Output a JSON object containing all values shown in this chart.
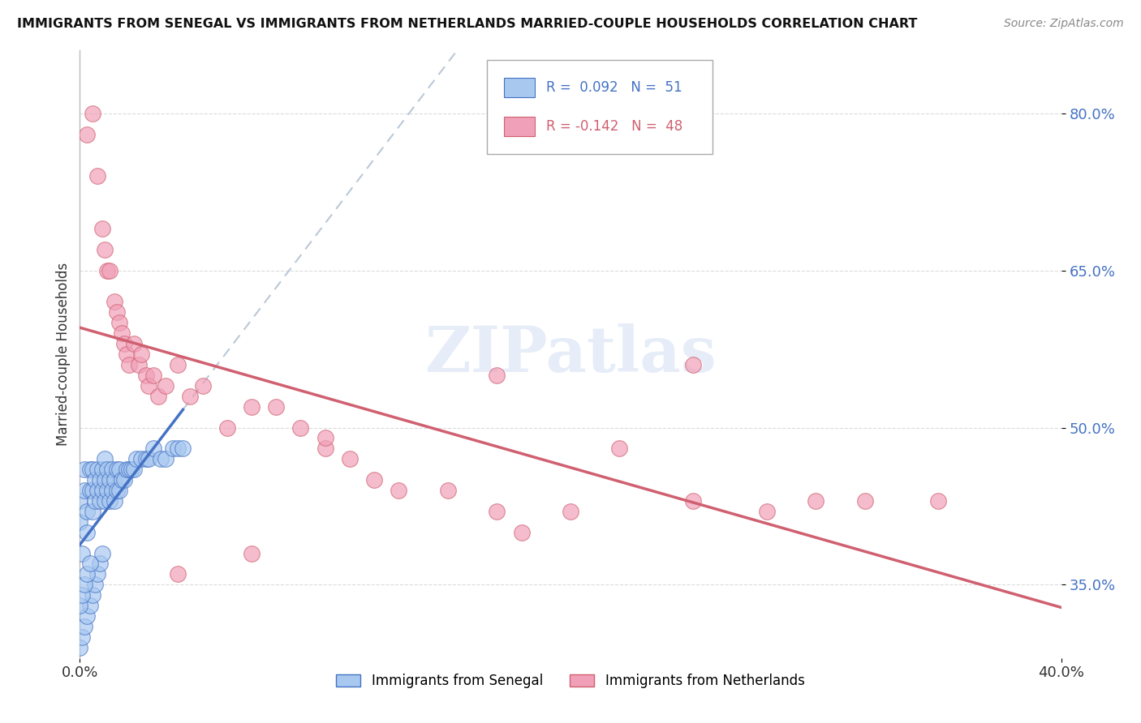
{
  "title": "IMMIGRANTS FROM SENEGAL VS IMMIGRANTS FROM NETHERLANDS MARRIED-COUPLE HOUSEHOLDS CORRELATION CHART",
  "source": "Source: ZipAtlas.com",
  "xlabel": "",
  "ylabel": "Married-couple Households",
  "xlim": [
    0.0,
    0.4
  ],
  "ylim": [
    0.28,
    0.86
  ],
  "yticks": [
    0.35,
    0.5,
    0.65,
    0.8
  ],
  "ytick_labels": [
    "35.0%",
    "50.0%",
    "65.0%",
    "80.0%"
  ],
  "xticks": [
    0.0,
    0.4
  ],
  "xtick_labels": [
    "0.0%",
    "40.0%"
  ],
  "watermark": "ZIPatlas",
  "legend": {
    "series1_label": "Immigrants from Senegal",
    "series2_label": "Immigrants from Netherlands",
    "r1": "0.092",
    "n1": "51",
    "r2": "-0.142",
    "n2": "48"
  },
  "color_blue": "#a8c8f0",
  "color_pink": "#f0a0b8",
  "line_blue": "#4472C4",
  "line_pink": "#d06070",
  "senegal_x": [
    0.0,
    0.0,
    0.001,
    0.002,
    0.002,
    0.003,
    0.003,
    0.004,
    0.004,
    0.005,
    0.005,
    0.005,
    0.006,
    0.006,
    0.007,
    0.007,
    0.008,
    0.008,
    0.009,
    0.009,
    0.01,
    0.01,
    0.01,
    0.011,
    0.011,
    0.012,
    0.012,
    0.013,
    0.013,
    0.014,
    0.014,
    0.015,
    0.015,
    0.016,
    0.016,
    0.017,
    0.018,
    0.019,
    0.02,
    0.021,
    0.022,
    0.023,
    0.025,
    0.027,
    0.028,
    0.03,
    0.033,
    0.035,
    0.038,
    0.04,
    0.042
  ],
  "senegal_y": [
    0.41,
    0.43,
    0.38,
    0.44,
    0.46,
    0.4,
    0.42,
    0.44,
    0.46,
    0.42,
    0.44,
    0.46,
    0.43,
    0.45,
    0.44,
    0.46,
    0.43,
    0.45,
    0.44,
    0.46,
    0.43,
    0.45,
    0.47,
    0.44,
    0.46,
    0.43,
    0.45,
    0.44,
    0.46,
    0.43,
    0.45,
    0.44,
    0.46,
    0.44,
    0.46,
    0.45,
    0.45,
    0.46,
    0.46,
    0.46,
    0.46,
    0.47,
    0.47,
    0.47,
    0.47,
    0.48,
    0.47,
    0.47,
    0.48,
    0.48,
    0.48
  ],
  "senegal_y_low": [
    0.28,
    0.3,
    0.33,
    0.35,
    0.36,
    0.37,
    0.38,
    0.38,
    0.39
  ],
  "netherlands_x": [
    0.003,
    0.005,
    0.007,
    0.009,
    0.01,
    0.011,
    0.012,
    0.014,
    0.015,
    0.016,
    0.017,
    0.018,
    0.019,
    0.02,
    0.022,
    0.024,
    0.025,
    0.027,
    0.028,
    0.03,
    0.032,
    0.035,
    0.04,
    0.045,
    0.05,
    0.06,
    0.07,
    0.08,
    0.09,
    0.1,
    0.11,
    0.12,
    0.13,
    0.15,
    0.17,
    0.18,
    0.2,
    0.22,
    0.25,
    0.28,
    0.3,
    0.32,
    0.35,
    0.25,
    0.17,
    0.1,
    0.07,
    0.04
  ],
  "netherlands_y": [
    0.78,
    0.8,
    0.74,
    0.69,
    0.67,
    0.65,
    0.65,
    0.62,
    0.61,
    0.6,
    0.59,
    0.58,
    0.57,
    0.56,
    0.58,
    0.56,
    0.57,
    0.55,
    0.54,
    0.55,
    0.53,
    0.54,
    0.56,
    0.53,
    0.54,
    0.5,
    0.52,
    0.52,
    0.5,
    0.48,
    0.47,
    0.45,
    0.44,
    0.44,
    0.42,
    0.4,
    0.42,
    0.48,
    0.43,
    0.42,
    0.43,
    0.43,
    0.43,
    0.56,
    0.55,
    0.49,
    0.38,
    0.36
  ],
  "background_color": "#ffffff",
  "grid_color": "#cccccc",
  "dash_line_color": "#aabbcc"
}
